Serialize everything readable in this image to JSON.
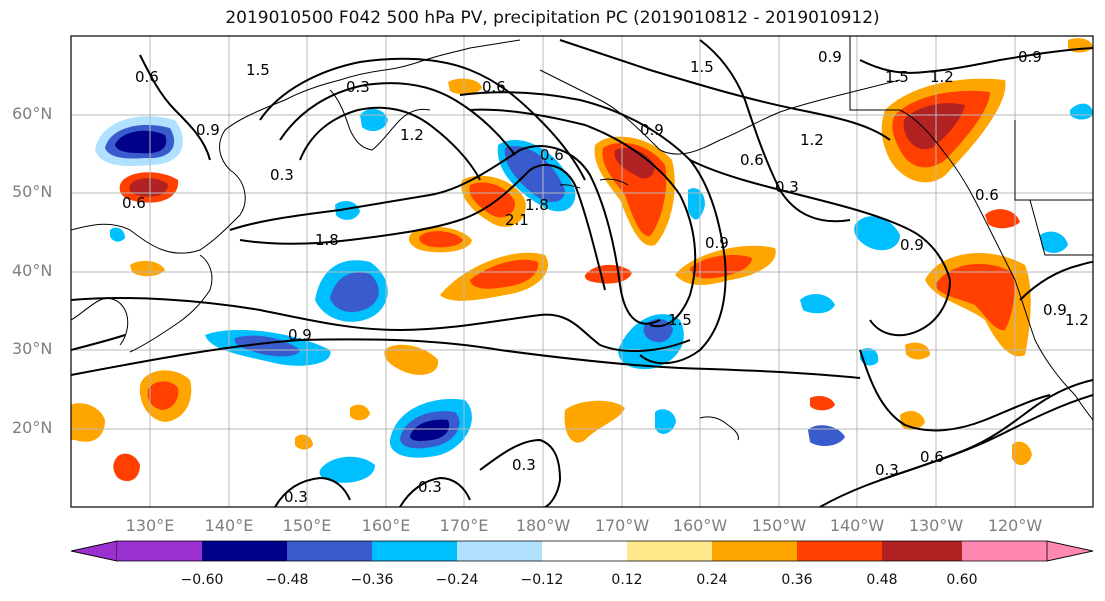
{
  "title": "2019010500 F042 500 hPa PV, precipitation PC (2019010812 - 2019010912)",
  "axes": {
    "lat_labels": [
      "60°N",
      "50°N",
      "40°N",
      "30°N",
      "20°N"
    ],
    "lon_labels": [
      "130°E",
      "140°E",
      "150°E",
      "160°E",
      "170°E",
      "180°W",
      "170°W",
      "160°W",
      "150°W",
      "140°W",
      "130°W",
      "120°W"
    ]
  },
  "colorbar": {
    "ticks": [
      "−0.60",
      "−0.48",
      "−0.36",
      "−0.24",
      "−0.12",
      "0.12",
      "0.24",
      "0.36",
      "0.48",
      "0.60"
    ],
    "colors": [
      "#9b30d0",
      "#00008b",
      "#3a5bcc",
      "#00bfff",
      "#b0e2ff",
      "#ffffff",
      "#ffe98a",
      "#ffa500",
      "#ff4000",
      "#b22222",
      "#ff88b0"
    ]
  },
  "contour_labels": [
    "1.5",
    "0.3",
    "0.6",
    "1.5",
    "0.9",
    "1.5",
    "1.2",
    "0.9",
    "0.6",
    "0.9",
    "1.2",
    "0.6",
    "0.3",
    "0.9",
    "1.2",
    "1.8",
    "2.1",
    "0.6",
    "1.8",
    "0.6",
    "0.9",
    "1.5",
    "0.9",
    "0.6",
    "0.3",
    "0.9",
    "0.3",
    "0.3",
    "0.3",
    "0.6",
    "0.3",
    "0.9",
    "1.2"
  ]
}
